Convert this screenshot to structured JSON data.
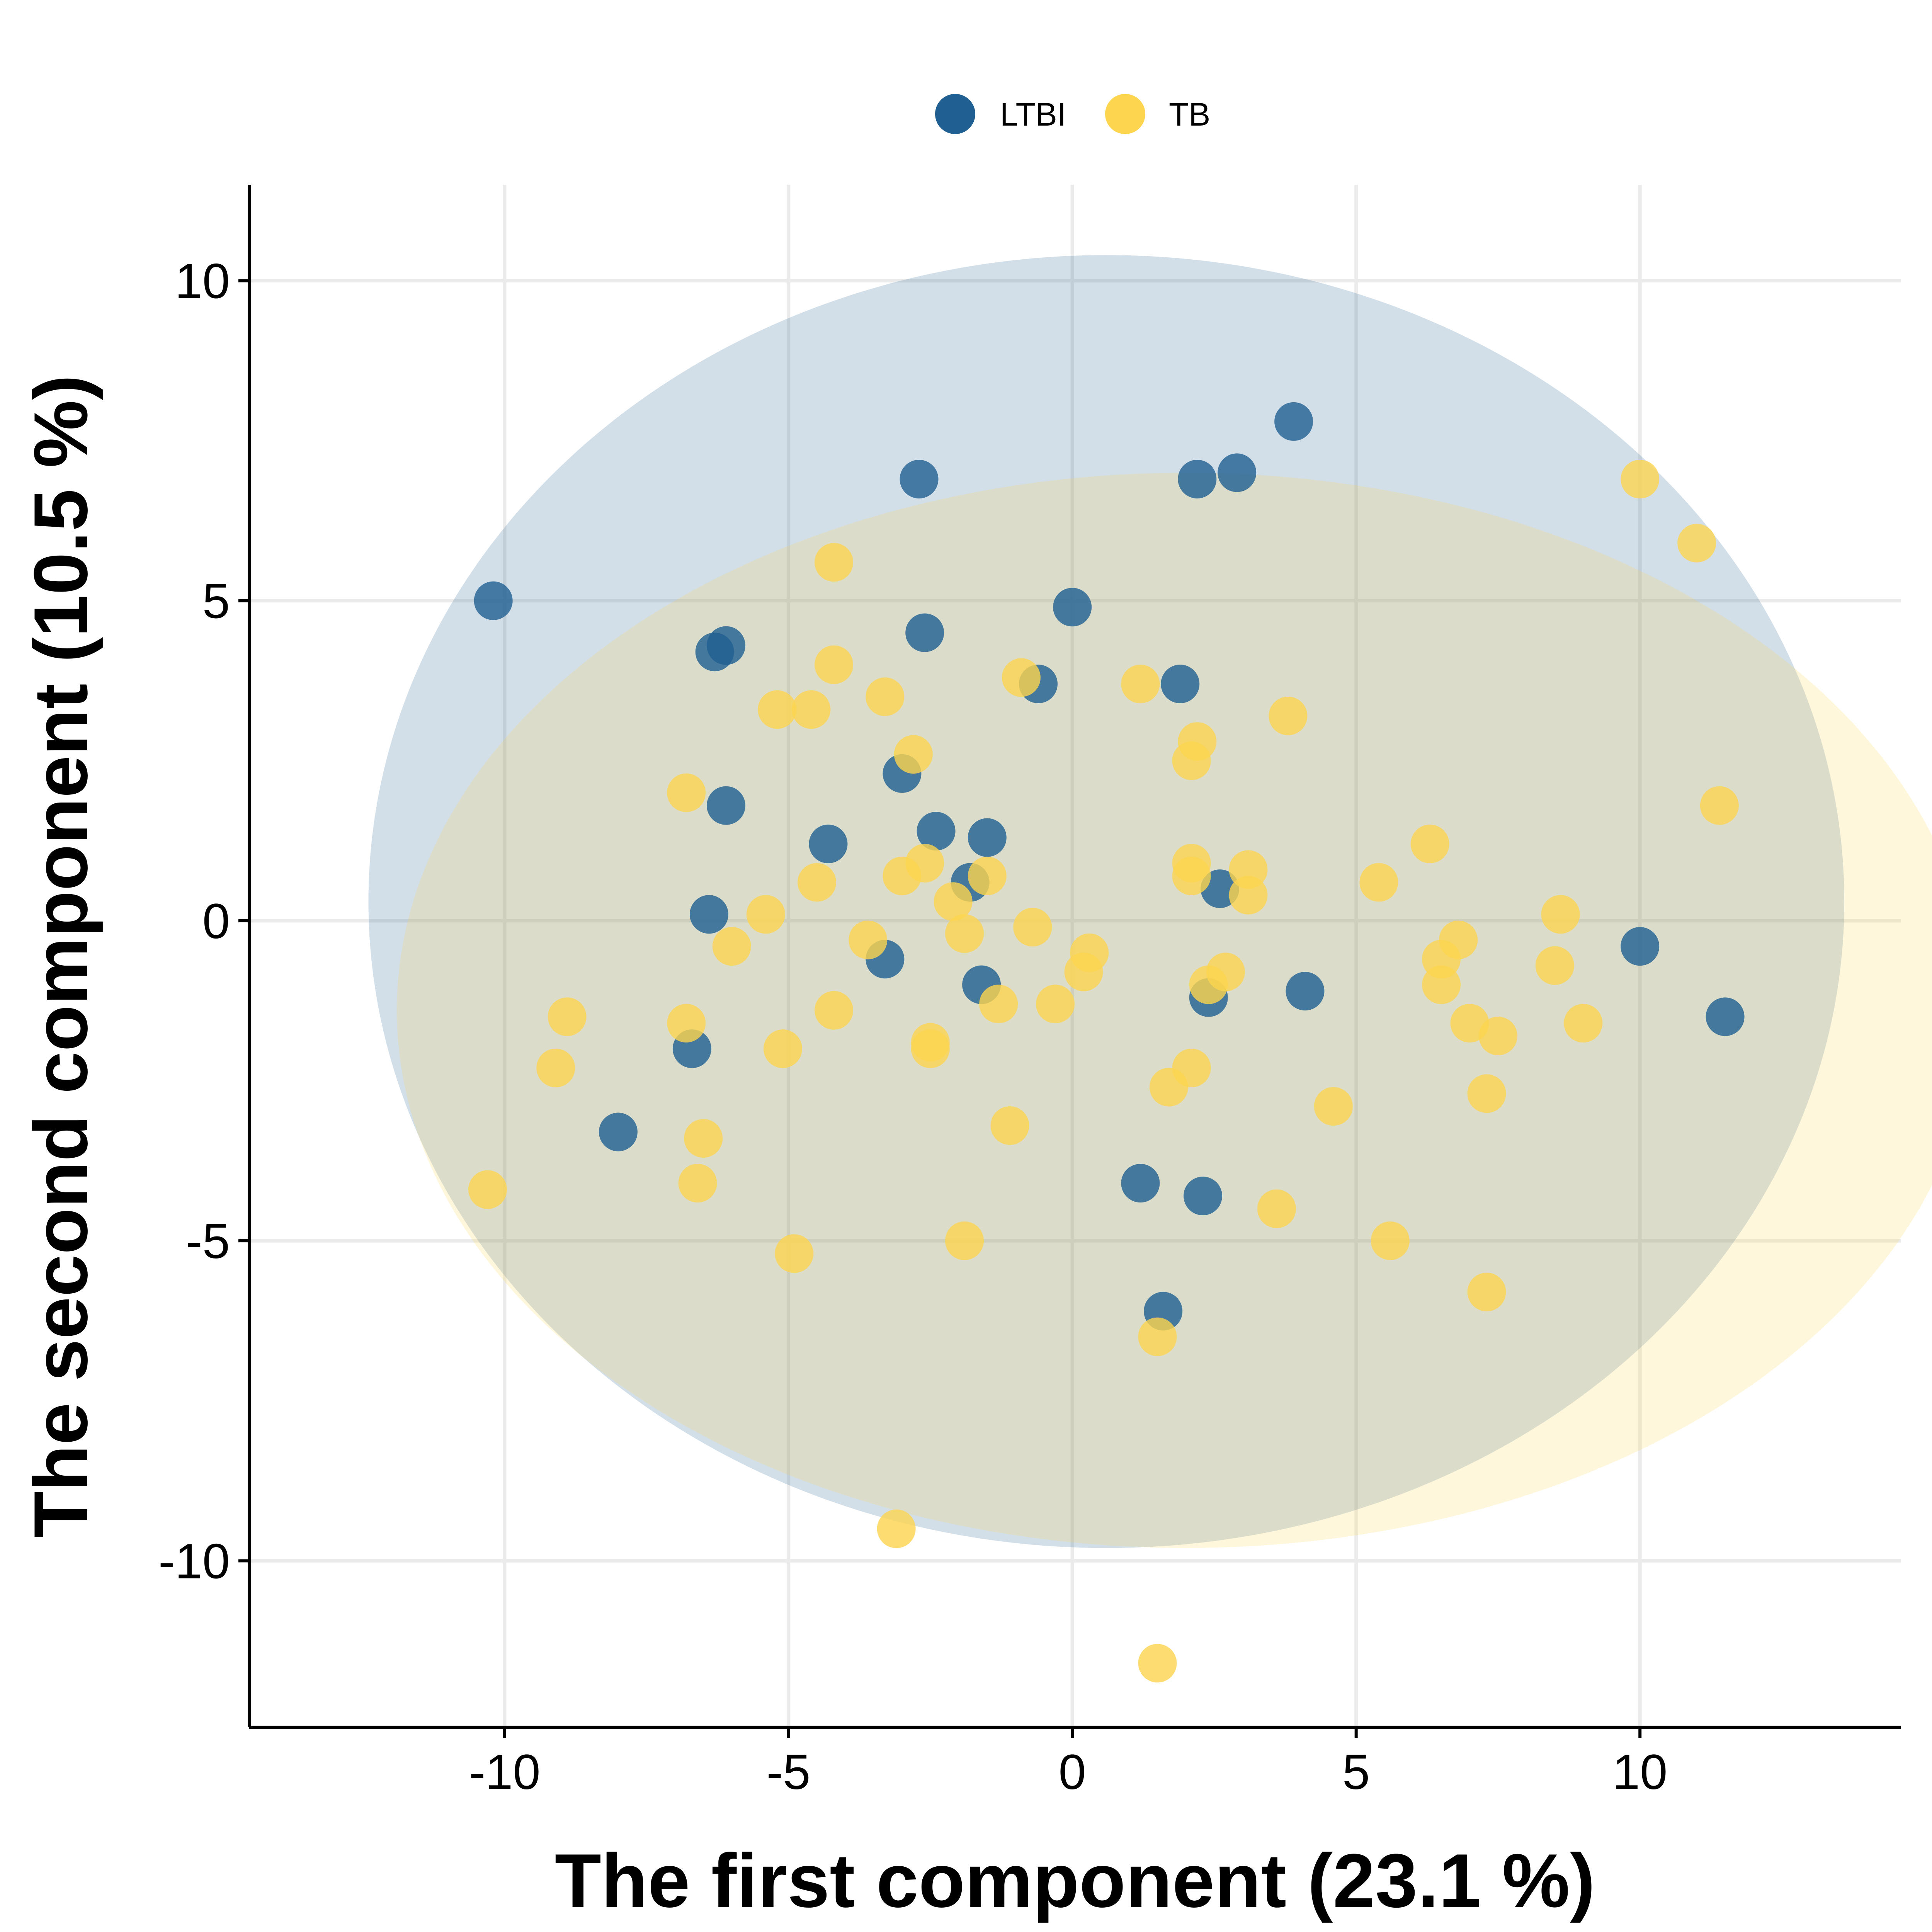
{
  "chart_data": {
    "type": "scatter",
    "xlabel": "The first component (23.1 %)",
    "ylabel": "The second component (10.5 %)",
    "xlim": [
      -14.5,
      14.6
    ],
    "ylim": [
      -12.6,
      11.5
    ],
    "xticks": [
      -10,
      -5,
      0,
      5,
      10
    ],
    "yticks": [
      -10,
      -5,
      0,
      5,
      10
    ],
    "xtick_labels": [
      "-10",
      "-5",
      "0",
      "5",
      "10"
    ],
    "ytick_labels": [
      "-10",
      "-5",
      "0",
      "5",
      "10"
    ],
    "grid": true,
    "legend_position": "top",
    "series": [
      {
        "name": "LTBI",
        "color": "#1f5f91",
        "ellipse": {
          "cx": 0.6,
          "cy": 0.3,
          "rx": 13.0,
          "ry": 10.1
        },
        "points": [
          [
            -10.2,
            5.0
          ],
          [
            -2.7,
            6.9
          ],
          [
            3.9,
            7.8
          ],
          [
            2.2,
            6.9
          ],
          [
            2.9,
            7.0
          ],
          [
            -2.6,
            4.5
          ],
          [
            0.0,
            4.9
          ],
          [
            -6.3,
            4.2
          ],
          [
            -6.1,
            4.3
          ],
          [
            -0.6,
            3.7
          ],
          [
            1.9,
            3.7
          ],
          [
            -3.0,
            2.3
          ],
          [
            -6.1,
            1.8
          ],
          [
            -2.4,
            1.4
          ],
          [
            -4.3,
            1.2
          ],
          [
            -1.5,
            1.3
          ],
          [
            -1.8,
            0.6
          ],
          [
            -6.4,
            0.1
          ],
          [
            2.6,
            0.5
          ],
          [
            -3.3,
            -0.6
          ],
          [
            -1.6,
            -1.0
          ],
          [
            2.4,
            -1.2
          ],
          [
            4.1,
            -1.1
          ],
          [
            -6.7,
            -2.0
          ],
          [
            -8.0,
            -3.3
          ],
          [
            1.2,
            -4.1
          ],
          [
            2.3,
            -4.3
          ],
          [
            1.6,
            -6.1
          ],
          [
            10.0,
            -0.4
          ],
          [
            11.5,
            -1.5
          ]
        ]
      },
      {
        "name": "TB",
        "color": "#fdd54f",
        "ellipse": {
          "cx": 2.0,
          "cy": -1.4,
          "rx": 13.9,
          "ry": 8.4
        },
        "points": [
          [
            10.0,
            6.9
          ],
          [
            11.0,
            5.9
          ],
          [
            11.4,
            1.8
          ],
          [
            -4.2,
            5.6
          ],
          [
            -4.2,
            4.0
          ],
          [
            -3.3,
            3.5
          ],
          [
            -5.2,
            3.3
          ],
          [
            -4.6,
            3.3
          ],
          [
            -0.9,
            3.8
          ],
          [
            1.2,
            3.7
          ],
          [
            3.8,
            3.2
          ],
          [
            2.2,
            2.8
          ],
          [
            2.1,
            2.5
          ],
          [
            -2.8,
            2.6
          ],
          [
            -6.8,
            2.0
          ],
          [
            6.3,
            1.2
          ],
          [
            -2.6,
            0.9
          ],
          [
            -3.0,
            0.7
          ],
          [
            -1.5,
            0.7
          ],
          [
            2.1,
            0.9
          ],
          [
            2.1,
            0.7
          ],
          [
            3.1,
            0.8
          ],
          [
            3.1,
            0.4
          ],
          [
            5.4,
            0.6
          ],
          [
            8.6,
            0.1
          ],
          [
            -4.5,
            0.6
          ],
          [
            -5.4,
            0.1
          ],
          [
            -2.1,
            0.3
          ],
          [
            -1.9,
            -0.2
          ],
          [
            -0.7,
            -0.1
          ],
          [
            -3.6,
            -0.3
          ],
          [
            -6.0,
            -0.4
          ],
          [
            6.8,
            -0.3
          ],
          [
            6.5,
            -0.6
          ],
          [
            0.3,
            -0.5
          ],
          [
            0.2,
            -0.8
          ],
          [
            2.7,
            -0.8
          ],
          [
            2.4,
            -1.0
          ],
          [
            6.5,
            -1.0
          ],
          [
            8.5,
            -0.7
          ],
          [
            -8.9,
            -1.5
          ],
          [
            -1.3,
            -1.3
          ],
          [
            -0.3,
            -1.3
          ],
          [
            -4.2,
            -1.4
          ],
          [
            -6.8,
            -1.6
          ],
          [
            7.0,
            -1.6
          ],
          [
            7.5,
            -1.8
          ],
          [
            9.0,
            -1.6
          ],
          [
            -2.5,
            -1.9
          ],
          [
            -2.5,
            -2.0
          ],
          [
            -5.1,
            -2.0
          ],
          [
            -9.1,
            -2.3
          ],
          [
            2.1,
            -2.3
          ],
          [
            1.7,
            -2.6
          ],
          [
            7.3,
            -2.7
          ],
          [
            4.6,
            -2.9
          ],
          [
            -1.1,
            -3.2
          ],
          [
            -6.5,
            -3.4
          ],
          [
            -10.3,
            -4.2
          ],
          [
            -6.6,
            -4.1
          ],
          [
            3.6,
            -4.5
          ],
          [
            5.6,
            -5.0
          ],
          [
            -1.9,
            -5.0
          ],
          [
            -4.9,
            -5.2
          ],
          [
            7.3,
            -5.8
          ],
          [
            1.5,
            -6.5
          ],
          [
            -3.1,
            -9.5
          ],
          [
            1.5,
            -11.6
          ]
        ]
      }
    ]
  }
}
